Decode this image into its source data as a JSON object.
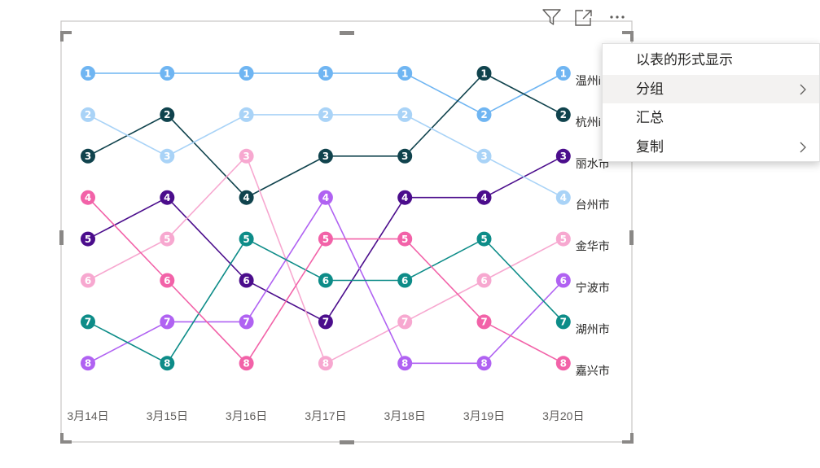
{
  "chart_data": {
    "type": "line",
    "subtype": "bump",
    "x": [
      "3月14日",
      "3月15日",
      "3月16日",
      "3月17日",
      "3月18日",
      "3月19日",
      "3月20日"
    ],
    "ylim": [
      1,
      8
    ],
    "y_inverted": true,
    "grid": false,
    "legend": "none",
    "series": [
      {
        "name": "温州市",
        "color": "#6FB5F2",
        "values": [
          1,
          1,
          1,
          1,
          1,
          2,
          1
        ]
      },
      {
        "name": "杭州市",
        "color": "#10434D",
        "values": [
          3,
          2,
          4,
          3,
          3,
          1,
          2
        ]
      },
      {
        "name": "丽水市",
        "color": "#4B0D8C",
        "values": [
          5,
          4,
          6,
          7,
          4,
          4,
          3
        ]
      },
      {
        "name": "台州市",
        "color": "#A9D3F7",
        "values": [
          2,
          3,
          2,
          2,
          2,
          3,
          4
        ]
      },
      {
        "name": "金华市",
        "color": "#F7A8D0",
        "values": [
          6,
          5,
          3,
          8,
          7,
          6,
          5
        ]
      },
      {
        "name": "宁波市",
        "color": "#B062F2",
        "values": [
          8,
          7,
          7,
          4,
          8,
          8,
          6
        ]
      },
      {
        "name": "湖州市",
        "color": "#0D8C88",
        "values": [
          7,
          8,
          5,
          6,
          6,
          5,
          7
        ]
      },
      {
        "name": "嘉兴市",
        "color": "#F262A8",
        "values": [
          4,
          6,
          8,
          5,
          5,
          7,
          8
        ]
      }
    ]
  },
  "end_labels": {
    "温州市": "温州i",
    "杭州市": "杭州i",
    "丽水市": "丽水市",
    "台州市": "台州市",
    "金华市": "金华市",
    "宁波市": "宁波市",
    "湖州市": "湖州市",
    "嘉兴市": "嘉兴市"
  },
  "toolbar": {
    "icons": [
      "filter-icon",
      "focus-mode-icon",
      "more-options-icon"
    ]
  },
  "context_menu": {
    "items": [
      {
        "label": "以表的形式显示",
        "has_submenu": false,
        "highlighted": false
      },
      {
        "label": "分组",
        "has_submenu": true,
        "highlighted": true
      },
      {
        "label": "汇总",
        "has_submenu": false,
        "highlighted": false
      },
      {
        "label": "复制",
        "has_submenu": true,
        "highlighted": false
      }
    ]
  },
  "colors": {
    "frame_border": "#c8c6c4",
    "handle": "#8a8886",
    "axis_text": "#605e5c",
    "menu_highlight": "#f3f2f1"
  }
}
